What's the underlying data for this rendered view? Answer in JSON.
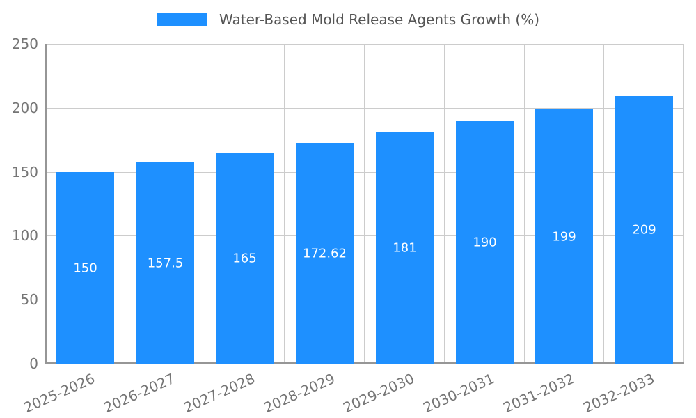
{
  "chart_data": {
    "type": "bar",
    "legend_label": "Water-Based Mold Release Agents Growth (%)",
    "legend_position": "top",
    "categories": [
      "2025-2026",
      "2026-2027",
      "2027-2028",
      "2028-2029",
      "2029-2030",
      "2030-2031",
      "2031-2032",
      "2032-2033"
    ],
    "values": [
      150,
      157.5,
      165,
      172.62,
      181,
      190,
      199,
      209
    ],
    "value_labels": [
      "150",
      "157.5",
      "165",
      "172.62",
      "181",
      "190",
      "199",
      "209"
    ],
    "title": "",
    "xlabel": "",
    "ylabel": "",
    "ylim": [
      0,
      250
    ],
    "yticks": [
      0,
      50,
      100,
      150,
      200,
      250
    ],
    "grid": true,
    "colors": {
      "bar": "#1e90ff",
      "grid": "#cccccc",
      "axis": "#969696",
      "tick_text": "#757575",
      "legend_text": "#555555",
      "bar_label_text": "#ffffff",
      "background": "#ffffff"
    }
  }
}
